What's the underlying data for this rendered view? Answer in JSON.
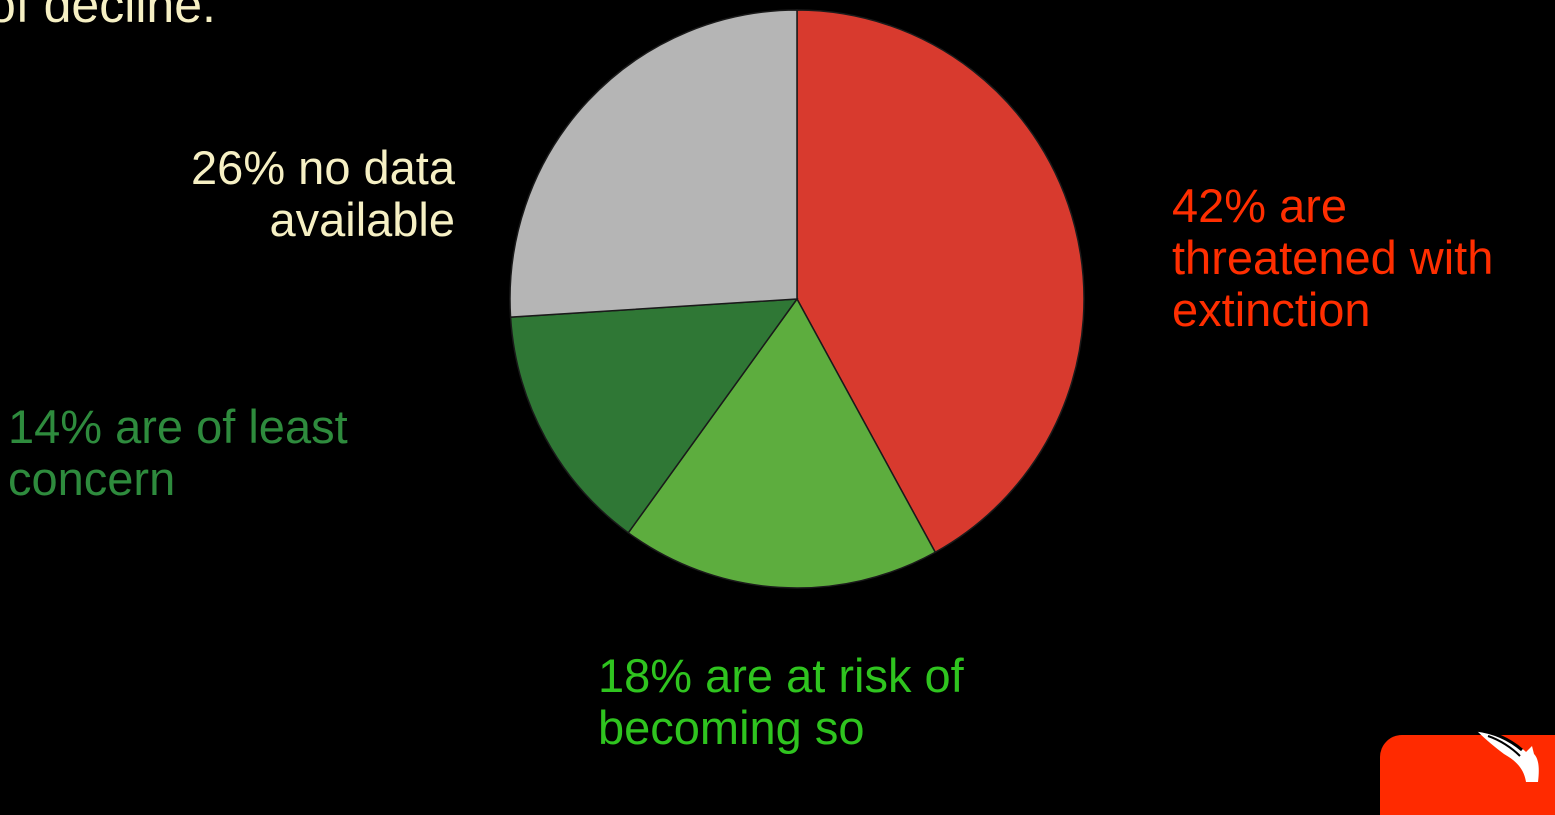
{
  "heading": {
    "fragment": "of decline.",
    "color": "#f6f0c4"
  },
  "chart_data": {
    "type": "pie",
    "title": "",
    "start_angle_deg": 0,
    "direction": "clockwise",
    "slices": [
      {
        "id": "threatened",
        "value": 42,
        "label": "42% are\nthreatened with\nextinction",
        "color": "#d83a2e",
        "label_color": "#ff2e00"
      },
      {
        "id": "at-risk",
        "value": 18,
        "label": "18% are at risk of\nbecoming so",
        "color": "#5dad3e",
        "label_color": "#2fc41f"
      },
      {
        "id": "least-concern",
        "value": 14,
        "label": "14% are of least\nconcern",
        "color": "#2f7735",
        "label_color": "#2e8b3d"
      },
      {
        "id": "no-data",
        "value": 26,
        "label": "26% no data\navailable",
        "color": "#b5b5b5",
        "label_color": "#f6f0c4"
      }
    ]
  },
  "logo": {
    "name": "swallow-logo-icon",
    "badge_color": "#ff2a00"
  }
}
